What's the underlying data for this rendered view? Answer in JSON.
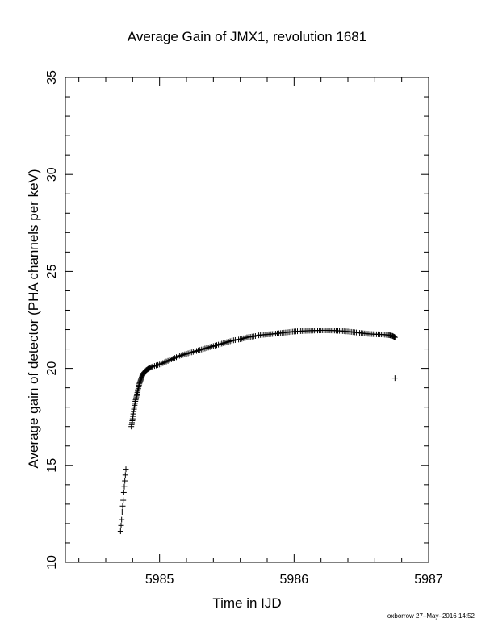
{
  "chart_data": {
    "type": "scatter",
    "title": "Average Gain of JMX1, revolution 1681",
    "xlabel": "Time in IJD",
    "ylabel": "Average gain of detector (PHA channels per keV)",
    "xlim": [
      5984.3,
      5987
    ],
    "ylim": [
      10,
      35
    ],
    "x_ticks": [
      "5985",
      "5986",
      "5987"
    ],
    "y_ticks": [
      "10",
      "15",
      "20",
      "25",
      "30",
      "35"
    ],
    "marker": "plus",
    "grid": false,
    "series": [
      {
        "points": [
          [
            5984.71,
            11.6
          ],
          [
            5984.714,
            11.9
          ],
          [
            5984.718,
            12.2
          ],
          [
            5984.722,
            12.6
          ],
          [
            5984.726,
            12.9
          ],
          [
            5984.73,
            13.2
          ],
          [
            5984.734,
            13.6
          ],
          [
            5984.738,
            13.9
          ],
          [
            5984.742,
            14.2
          ],
          [
            5984.746,
            14.5
          ],
          [
            5984.75,
            14.8
          ],
          [
            5984.79,
            17.0
          ],
          [
            5984.8,
            17.4
          ],
          [
            5984.81,
            17.9
          ],
          [
            5984.82,
            18.3
          ],
          [
            5984.83,
            18.6
          ],
          [
            5984.84,
            18.9
          ],
          [
            5984.85,
            19.2
          ],
          [
            5984.86,
            19.4
          ],
          [
            5984.87,
            19.6
          ],
          [
            5984.88,
            19.75
          ],
          [
            5984.9,
            19.9
          ],
          [
            5984.92,
            20.0
          ],
          [
            5984.95,
            20.1
          ],
          [
            5985.0,
            20.2
          ],
          [
            5985.05,
            20.35
          ],
          [
            5985.1,
            20.5
          ],
          [
            5985.15,
            20.65
          ],
          [
            5985.2,
            20.75
          ],
          [
            5985.25,
            20.85
          ],
          [
            5985.3,
            20.95
          ],
          [
            5985.35,
            21.05
          ],
          [
            5985.4,
            21.15
          ],
          [
            5985.45,
            21.25
          ],
          [
            5985.5,
            21.35
          ],
          [
            5985.55,
            21.45
          ],
          [
            5985.6,
            21.5
          ],
          [
            5985.65,
            21.6
          ],
          [
            5985.7,
            21.65
          ],
          [
            5985.75,
            21.72
          ],
          [
            5985.8,
            21.75
          ],
          [
            5985.85,
            21.78
          ],
          [
            5985.9,
            21.82
          ],
          [
            5985.95,
            21.86
          ],
          [
            5986.0,
            21.9
          ],
          [
            5986.05,
            21.92
          ],
          [
            5986.1,
            21.94
          ],
          [
            5986.15,
            21.95
          ],
          [
            5986.2,
            21.96
          ],
          [
            5986.25,
            21.96
          ],
          [
            5986.3,
            21.95
          ],
          [
            5986.35,
            21.93
          ],
          [
            5986.4,
            21.9
          ],
          [
            5986.45,
            21.86
          ],
          [
            5986.5,
            21.82
          ],
          [
            5986.55,
            21.78
          ],
          [
            5986.6,
            21.76
          ],
          [
            5986.65,
            21.75
          ],
          [
            5986.7,
            21.72
          ],
          [
            5986.73,
            21.68
          ],
          [
            5986.75,
            21.6
          ],
          [
            5986.75,
            19.5
          ]
        ]
      }
    ]
  },
  "footer": "oxborrow 27–May–2016 14:52"
}
